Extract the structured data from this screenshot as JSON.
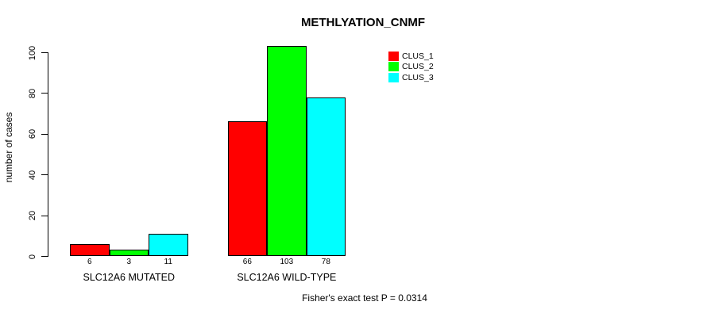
{
  "chart_data": {
    "type": "bar",
    "title": "METHLYATION_CNMF",
    "xlabel": "",
    "ylabel": "number of cases",
    "ylim": [
      0,
      100
    ],
    "yticks": [
      0,
      20,
      40,
      60,
      80,
      100
    ],
    "categories": [
      "SLC12A6 MUTATED",
      "SLC12A6 WILD-TYPE"
    ],
    "series": [
      {
        "name": "CLUS_1",
        "color": "#FF0000",
        "values": [
          6,
          66
        ]
      },
      {
        "name": "CLUS_2",
        "color": "#00FF00",
        "values": [
          3,
          103
        ]
      },
      {
        "name": "CLUS_3",
        "color": "#00FFFF",
        "values": [
          11,
          78
        ]
      }
    ],
    "bar_value_labels_shown": true,
    "bar_border_color": "#000000",
    "annotation": "Fisher's exact test P = 0.0314",
    "legend_position": "top-right",
    "grid": false,
    "background_color": "#FFFFFF"
  }
}
